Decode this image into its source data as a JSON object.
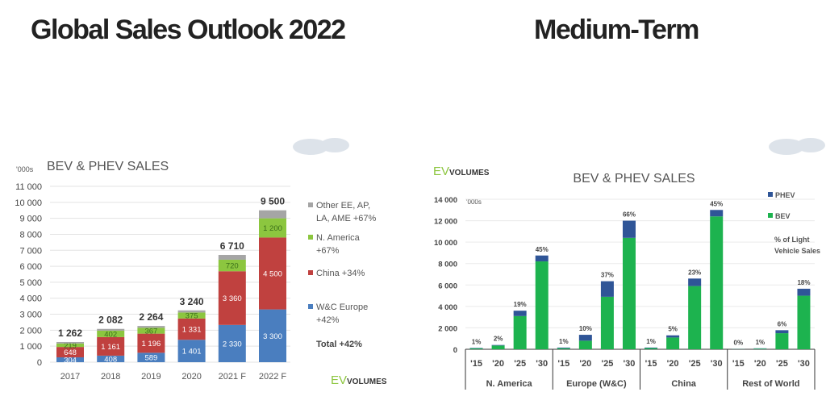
{
  "slide": {
    "title_left": "Global Sales Outlook 2022",
    "title_right": "Medium-Term"
  },
  "chart_data": [
    {
      "type": "bar",
      "stacked": true,
      "title": "BEV & PHEV SALES",
      "unit_label": "'000s",
      "ylim": [
        0,
        11000
      ],
      "yticks": [
        "0",
        "1 000",
        "2 000",
        "3 000",
        "4 000",
        "5 000",
        "6 000",
        "7 000",
        "8 000",
        "9 000",
        "10 000",
        "11 000"
      ],
      "categories": [
        "2017",
        "2018",
        "2019",
        "2020",
        "2021 F",
        "2022 F"
      ],
      "totals": [
        "1 262",
        "2 082",
        "2 264",
        "3 240",
        "6 710",
        "9 500"
      ],
      "series": [
        {
          "name": "W&C Europe",
          "legend": [
            "W&C Europe",
            "+42%"
          ],
          "color": "#4a7ebf",
          "values": [
            304,
            408,
            589,
            1401,
            2330,
            3300
          ],
          "labels": [
            "304",
            "408",
            "589",
            "1 401",
            "2 330",
            "3 300"
          ]
        },
        {
          "name": "China",
          "legend": [
            "China +34%"
          ],
          "color": "#c0413f",
          "values": [
            648,
            1161,
            1196,
            1331,
            3360,
            4500
          ],
          "labels": [
            "648",
            "1 161",
            "1 196",
            "1 331",
            "3 360",
            "4 500"
          ]
        },
        {
          "name": "N. America",
          "legend": [
            "N. America",
            "+67%"
          ],
          "color": "#8cc63f",
          "values": [
            219,
            402,
            367,
            375,
            720,
            1200
          ],
          "labels": [
            "219",
            "402",
            "367",
            "375",
            "720",
            "1 200"
          ]
        },
        {
          "name": "Other EE, AP, LA, AME",
          "legend": [
            "Other EE, AP,",
            "LA, AME +67%"
          ],
          "color": "#a5a5a5",
          "values": [
            91,
            111,
            112,
            133,
            300,
            500
          ],
          "labels": [
            "",
            "",
            "",
            "",
            "",
            ""
          ]
        }
      ],
      "total_note": "Total  +42%",
      "logo": {
        "ev": "EV",
        "volumes": "VOLUMES"
      }
    },
    {
      "type": "bar",
      "stacked": true,
      "title": "BEV & PHEV SALES",
      "unit_label": "'000s",
      "ylim": [
        0,
        14000
      ],
      "yticks": [
        "0",
        "2 000",
        "4 000",
        "6 000",
        "8 000",
        "10 000",
        "12 000",
        "14 000"
      ],
      "groups": [
        "N. America",
        "Europe (W&C)",
        "China",
        "Rest of World"
      ],
      "categories": [
        "'15",
        "'20",
        "'25",
        "'30"
      ],
      "series": [
        {
          "name": "BEV",
          "color": "#1db34f",
          "values": [
            [
              90,
              350,
              3100,
              8200
            ],
            [
              100,
              800,
              4900,
              10400
            ],
            [
              110,
              1100,
              5900,
              12400
            ],
            [
              15,
              60,
              1500,
              5000
            ]
          ]
        },
        {
          "name": "PHEV",
          "color": "#2f5597",
          "values": [
            [
              40,
              50,
              500,
              550
            ],
            [
              60,
              550,
              1450,
              1600
            ],
            [
              50,
              200,
              700,
              600
            ],
            [
              10,
              30,
              280,
              650
            ]
          ]
        }
      ],
      "share_labels": [
        [
          "1%",
          "2%",
          "19%",
          "45%"
        ],
        [
          "1%",
          "10%",
          "37%",
          "66%"
        ],
        [
          "1%",
          "5%",
          "23%",
          "45%"
        ],
        [
          "0%",
          "1%",
          "6%",
          "18%"
        ]
      ],
      "legend_note": [
        "% of Light",
        "Vehicle Sales"
      ],
      "logo": {
        "ev": "EV",
        "volumes": "VOLUMES"
      }
    }
  ]
}
